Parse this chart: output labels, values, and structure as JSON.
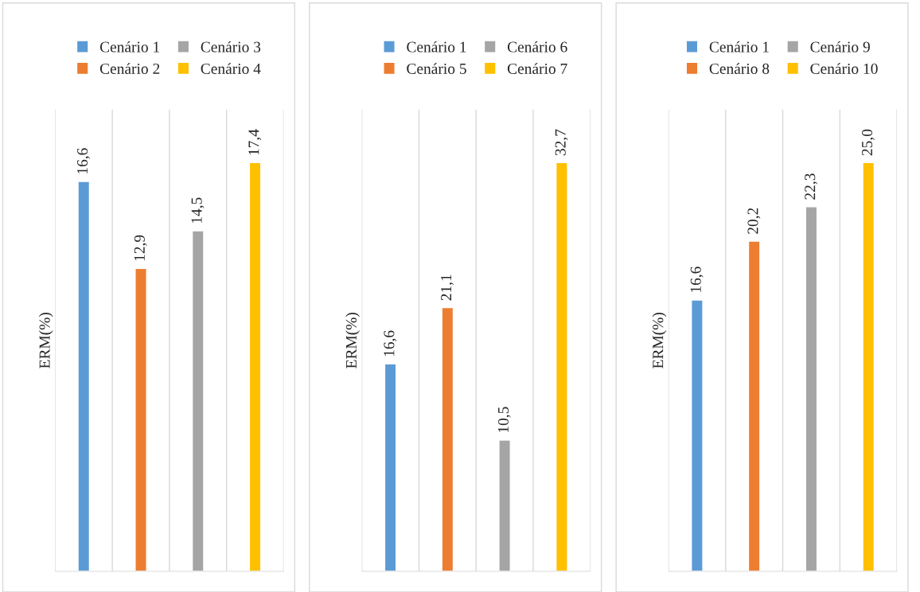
{
  "chart_data": [
    {
      "type": "bar",
      "ylabel": "ERM(%)",
      "categories": [
        "Cenário 1",
        "Cenário 2",
        "Cenário 3",
        "Cenário 4"
      ],
      "tick_labels": false,
      "grid": "x",
      "values": [
        16.6,
        12.9,
        14.5,
        17.4
      ],
      "value_labels": [
        "16,6",
        "12,9",
        "14,5",
        "17,4"
      ],
      "colors": [
        "#5b9bd5",
        "#ed7d31",
        "#a5a5a5",
        "#ffc000"
      ]
    },
    {
      "type": "bar",
      "ylabel": "ERM(%)",
      "categories": [
        "Cenário 1",
        "Cenário 5",
        "Cenário 6",
        "Cenário 7"
      ],
      "tick_labels": false,
      "grid": "x",
      "values": [
        16.6,
        21.1,
        10.5,
        32.7
      ],
      "value_labels": [
        "16,6",
        "21,1",
        "10,5",
        "32,7"
      ],
      "colors": [
        "#5b9bd5",
        "#ed7d31",
        "#a5a5a5",
        "#ffc000"
      ]
    },
    {
      "type": "bar",
      "ylabel": "ERM(%)",
      "categories": [
        "Cenário 1",
        "Cenário 8",
        "Cenário 9",
        "Cenário 10"
      ],
      "tick_labels": false,
      "grid": "x",
      "values": [
        16.6,
        20.2,
        22.3,
        25.0
      ],
      "value_labels": [
        "16,6",
        "20,2",
        "22,3",
        "25,0"
      ],
      "colors": [
        "#5b9bd5",
        "#ed7d31",
        "#a5a5a5",
        "#ffc000"
      ]
    }
  ]
}
